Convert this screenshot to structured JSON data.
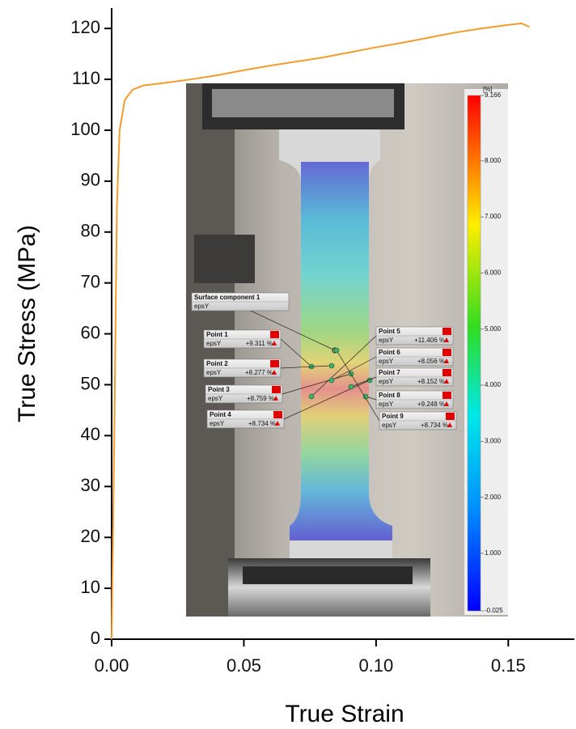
{
  "chart_data": {
    "type": "line",
    "xlabel": "True Strain",
    "ylabel": "True Stress (MPa)",
    "x": [
      0,
      0.001,
      0.002,
      0.003,
      0.005,
      0.008,
      0.012,
      0.02,
      0.03,
      0.04,
      0.05,
      0.06,
      0.07,
      0.08,
      0.09,
      0.1,
      0.11,
      0.12,
      0.13,
      0.14,
      0.15,
      0.155,
      0.158
    ],
    "series": [
      {
        "color": "#f39c2b",
        "values": [
          0,
          40,
          85,
          100,
          106,
          108,
          108.8,
          109.3,
          110,
          110.8,
          111.8,
          112.7,
          113.5,
          114.3,
          115.3,
          116.3,
          117.2,
          118.2,
          119.2,
          120,
          120.7,
          121,
          120.3
        ]
      }
    ],
    "xlim": [
      0,
      0.175
    ],
    "ylim": [
      0,
      124
    ],
    "xticks": [
      {
        "value": 0,
        "label": "0.00"
      },
      {
        "value": 0.05,
        "label": "0.05"
      },
      {
        "value": 0.1,
        "label": "0.10"
      },
      {
        "value": 0.15,
        "label": "0.15"
      }
    ],
    "yticks": [
      0,
      10,
      20,
      30,
      40,
      50,
      60,
      70,
      80,
      90,
      100,
      110,
      120
    ],
    "inset": {
      "colorbar": {
        "unit": "[%]",
        "lim": [
          -0.025,
          9.166
        ],
        "ticks": [
          {
            "value": 9.166,
            "label": "9.166"
          },
          {
            "value": 8,
            "label": "8.000"
          },
          {
            "value": 7,
            "label": "7.000"
          },
          {
            "value": 6,
            "label": "6.000"
          },
          {
            "value": 5,
            "label": "5.000"
          },
          {
            "value": 4,
            "label": "4.000"
          },
          {
            "value": 3,
            "label": "3.000"
          },
          {
            "value": 2,
            "label": "2.000"
          },
          {
            "value": 1,
            "label": "1.000"
          },
          {
            "value": -0.025,
            "label": "-0.025"
          }
        ]
      },
      "surface": {
        "name": "Surface component 1",
        "quantity": "epsY"
      },
      "points": [
        {
          "name": "Point 1",
          "quantity": "epsY",
          "readout": "+9.311 %"
        },
        {
          "name": "Point 2",
          "quantity": "epsY",
          "readout": "+8.277 %"
        },
        {
          "name": "Point 3",
          "quantity": "epsY",
          "readout": "+8.759 %"
        },
        {
          "name": "Point 4",
          "quantity": "epsY",
          "readout": "+8.734 %"
        },
        {
          "name": "Point 5",
          "quantity": "epsY",
          "readout": "+11.406 %"
        },
        {
          "name": "Point 6",
          "quantity": "epsY",
          "readout": "+8.056 %"
        },
        {
          "name": "Point 7",
          "quantity": "epsY",
          "readout": "+8.152 %"
        },
        {
          "name": "Point 8",
          "quantity": "epsY",
          "readout": "+9.248 %"
        },
        {
          "name": "Point 9",
          "quantity": "epsY",
          "readout": "+8.734 %"
        }
      ]
    }
  }
}
